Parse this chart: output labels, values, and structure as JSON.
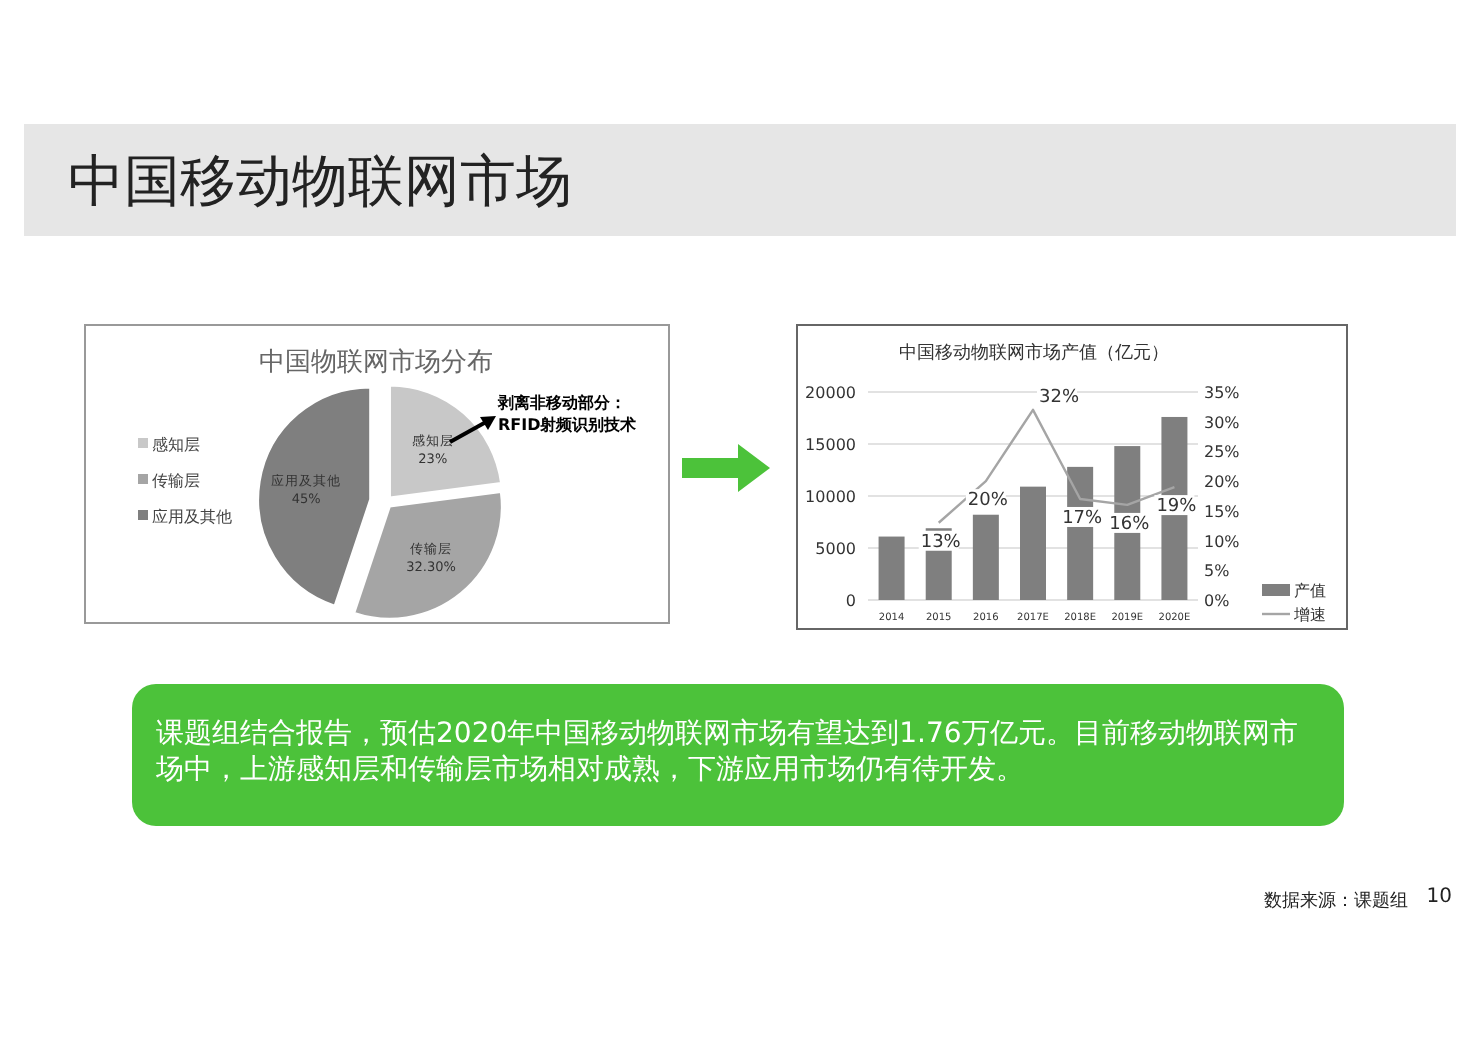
{
  "chart_data": [
    {
      "type": "pie",
      "title": "中国物联网市场分布",
      "categories": [
        "感知层",
        "传输层",
        "应用及其他"
      ],
      "values": [
        23,
        32.3,
        45
      ],
      "value_labels": [
        "23%",
        "32.30%",
        "45%"
      ],
      "colors": [
        "#c8c8c8",
        "#a5a5a5",
        "#7f7f7f"
      ],
      "legend": "left",
      "annotations": [
        "剥离非移动部分：RFID射频识别技术"
      ]
    },
    {
      "type": "bar",
      "title": "中国移动物联网市场产值（亿元）",
      "categories": [
        "2014",
        "2015",
        "2016",
        "2017E",
        "2018E",
        "2019E",
        "2020E"
      ],
      "series": [
        {
          "name": "产值",
          "type": "bar",
          "color": "#7f7f7f",
          "values": [
            6100,
            6900,
            8200,
            10900,
            12800,
            14800,
            17600
          ]
        },
        {
          "name": "增速",
          "type": "line",
          "axis": "y2",
          "color": "#a5a5a5",
          "values": [
            null,
            13,
            20,
            32,
            17,
            16,
            19
          ],
          "value_labels": [
            null,
            "13%",
            "20%",
            "32%",
            "17%",
            "16%",
            "19%"
          ]
        }
      ],
      "ylim": [
        0,
        20000
      ],
      "yticks": [
        0,
        5000,
        10000,
        15000,
        20000
      ],
      "y2lim": [
        0,
        35
      ],
      "y2ticks": [
        {
          "value": 0,
          "label": "0%"
        },
        {
          "value": 5,
          "label": "5%"
        },
        {
          "value": 10,
          "label": "10%"
        },
        {
          "value": 15,
          "label": "15%"
        },
        {
          "value": 20,
          "label": "20%"
        },
        {
          "value": 25,
          "label": "25%"
        },
        {
          "value": 30,
          "label": "30%"
        },
        {
          "value": 35,
          "label": "35%"
        }
      ],
      "grid": "y",
      "legend": "bottom right"
    },
    {
      "type": "other",
      "title": "中国移动物联网市场",
      "annotations": [
        "课题组结合报告，预估2020年中国移动物联网市场有望达到1.76万亿元。目前移动物联网市场中，上游感知层和传输层市场相对成熟，下游应用市场仍有待开发。",
        "数据来源：课题组",
        "10"
      ]
    }
  ]
}
